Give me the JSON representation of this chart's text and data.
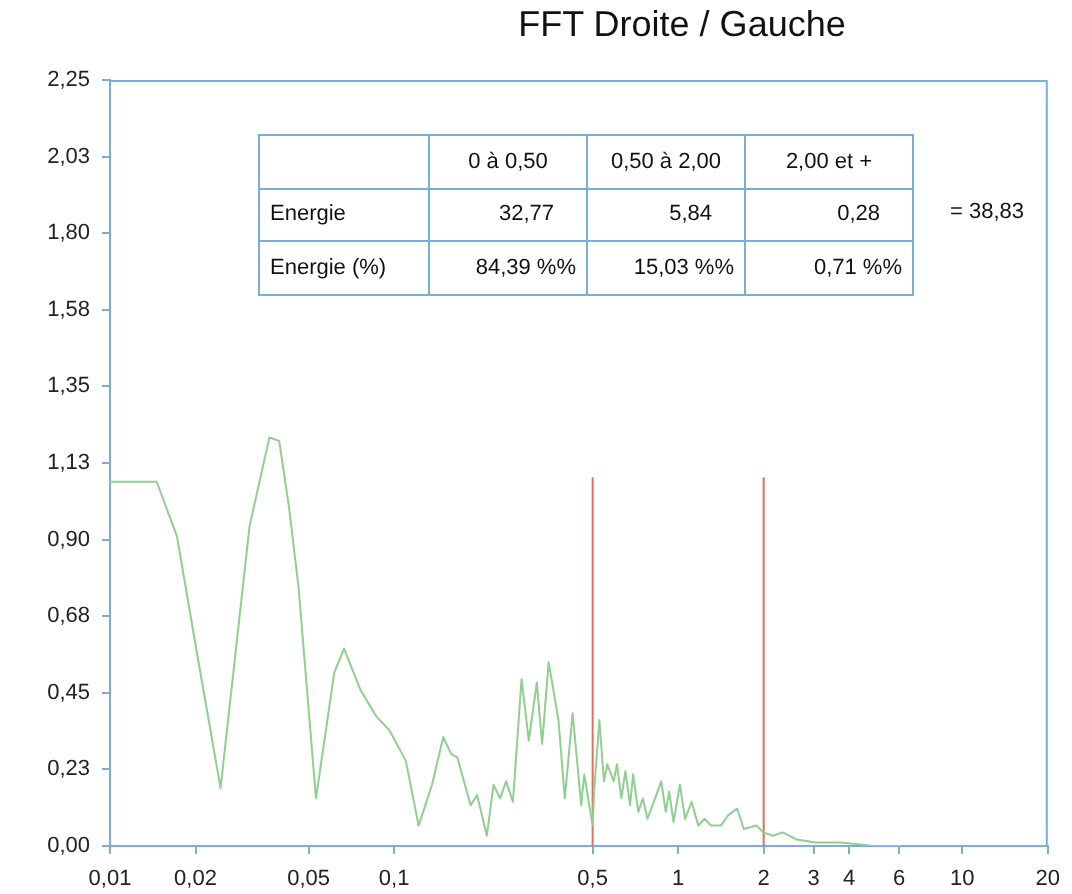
{
  "chart_data": {
    "type": "line",
    "title": "FFT Droite / Gauche",
    "annotations": [
      "0 à 0,50",
      "0,50 à 2,00",
      "2,00 et +",
      "Energie",
      "32,77",
      "5,84",
      "0,28",
      "Energie (%)",
      "84,39 %%",
      "15,03 %%",
      "0,71 %%",
      "= 38,83"
    ],
    "series": [
      {
        "color": "#8fcf8f",
        "x": [
          0.01,
          0.0146,
          0.0172,
          0.0204,
          0.0245,
          0.031,
          0.0364,
          0.0394,
          0.0426,
          0.0461,
          0.0531,
          0.0616,
          0.0667,
          0.076,
          0.0867,
          0.0963,
          0.11,
          0.122,
          0.136,
          0.149,
          0.159,
          0.167,
          0.186,
          0.196,
          0.212,
          0.224,
          0.236,
          0.248,
          0.262,
          0.281,
          0.298,
          0.318,
          0.332,
          0.35,
          0.379,
          0.399,
          0.425,
          0.456,
          0.467,
          0.5,
          0.506,
          0.528,
          0.548,
          0.563,
          0.593,
          0.609,
          0.631,
          0.652,
          0.677,
          0.694,
          0.724,
          0.751,
          0.78,
          0.813,
          0.872,
          0.904,
          0.93,
          0.963,
          1.014,
          1.058,
          1.115,
          1.177,
          1.24,
          1.306,
          1.414,
          1.498,
          1.614,
          1.701,
          1.891,
          1.992,
          2.156,
          2.333,
          2.594,
          3.04,
          3.75,
          4.88,
          6.02
        ],
        "values": [
          1.07,
          1.07,
          0.91,
          0.55,
          0.17,
          0.94,
          1.2,
          1.19,
          1.0,
          0.76,
          0.14,
          0.51,
          0.58,
          0.46,
          0.38,
          0.34,
          0.25,
          0.06,
          0.18,
          0.32,
          0.27,
          0.26,
          0.12,
          0.15,
          0.03,
          0.18,
          0.14,
          0.19,
          0.13,
          0.49,
          0.31,
          0.48,
          0.3,
          0.54,
          0.37,
          0.14,
          0.39,
          0.12,
          0.21,
          0.06,
          0.16,
          0.37,
          0.19,
          0.24,
          0.19,
          0.24,
          0.14,
          0.22,
          0.12,
          0.21,
          0.1,
          0.14,
          0.08,
          0.12,
          0.19,
          0.1,
          0.16,
          0.07,
          0.18,
          0.08,
          0.13,
          0.06,
          0.08,
          0.06,
          0.06,
          0.09,
          0.11,
          0.05,
          0.06,
          0.04,
          0.03,
          0.04,
          0.02,
          0.01,
          0.01,
          0,
          0
        ]
      },
      {
        "color": "#e0705a",
        "x": [
          0.5,
          0.5
        ],
        "values": [
          0,
          1.08
        ]
      },
      {
        "color": "#e0705a",
        "x": [
          2,
          2
        ],
        "values": [
          0,
          1.08
        ]
      }
    ],
    "xlim": [
      0.01,
      20
    ],
    "xticks": [
      {
        "value": 0.01,
        "label": "0,01"
      },
      {
        "value": 0.02,
        "label": "0,02"
      },
      {
        "value": 0.05,
        "label": "0,05"
      },
      {
        "value": 0.1,
        "label": "0,1"
      },
      {
        "value": 0.5,
        "label": "0,5"
      },
      1,
      2,
      3,
      4,
      6,
      10,
      20
    ],
    "ylim": [
      0,
      2.25
    ],
    "yticks": [
      {
        "value": 0,
        "label": "0,00"
      },
      {
        "value": 0.225,
        "label": "0,23"
      },
      {
        "value": 0.45,
        "label": "0,45"
      },
      {
        "value": 0.675,
        "label": "0,68"
      },
      {
        "value": 0.9,
        "label": "0,90"
      },
      {
        "value": 1.125,
        "label": "1,13"
      },
      {
        "value": 1.35,
        "label": "1,35"
      },
      {
        "value": 1.575,
        "label": "1,58"
      },
      {
        "value": 1.8,
        "label": "1,80"
      },
      {
        "value": 2.025,
        "label": "2,03"
      },
      {
        "value": 2.25,
        "label": "2,25"
      }
    ],
    "log": "x",
    "marker": "none"
  }
}
